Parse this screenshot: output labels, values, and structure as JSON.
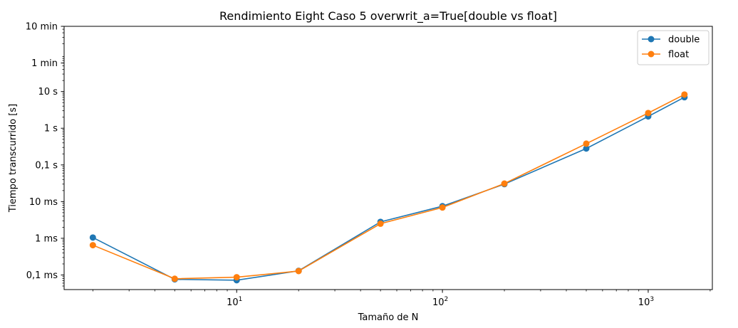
{
  "chart_data": {
    "type": "line",
    "title": "Rendimiento Eight Caso 5 overwrit_a=True[double vs float]",
    "xlabel": "Tamaño de N",
    "ylabel": "Tiempo transcurrido [s]",
    "xscale": "log",
    "yscale": "log",
    "xlim": [
      1.45,
      2050
    ],
    "ylim": [
      4e-05,
      600
    ],
    "x_ticks": [
      {
        "value": 10,
        "base": "10",
        "exp": "1"
      },
      {
        "value": 100,
        "base": "10",
        "exp": "2"
      },
      {
        "value": 1000,
        "base": "10",
        "exp": "3"
      }
    ],
    "y_ticks": [
      {
        "value": 0.0001,
        "label": "0,1 ms"
      },
      {
        "value": 0.001,
        "label": "1 ms"
      },
      {
        "value": 0.01,
        "label": "10 ms"
      },
      {
        "value": 0.1,
        "label": "0,1 s"
      },
      {
        "value": 1,
        "label": "1 s"
      },
      {
        "value": 10,
        "label": "10 s"
      },
      {
        "value": 60,
        "label": "1 min"
      },
      {
        "value": 600,
        "label": "10 min"
      }
    ],
    "x": [
      2,
      5,
      10,
      20,
      50,
      100,
      200,
      500,
      1000,
      1500
    ],
    "series": [
      {
        "name": "double",
        "color": "#1f77b4",
        "values": [
          0.00105,
          7.6e-05,
          7.2e-05,
          0.00013,
          0.0028,
          0.0075,
          0.03,
          0.28,
          2.1,
          7.0
        ]
      },
      {
        "name": "float",
        "color": "#ff7f0e",
        "values": [
          0.00065,
          7.9e-05,
          8.7e-05,
          0.000128,
          0.0025,
          0.0069,
          0.031,
          0.38,
          2.6,
          8.3
        ]
      }
    ],
    "grid": false,
    "legend": "top-right"
  }
}
